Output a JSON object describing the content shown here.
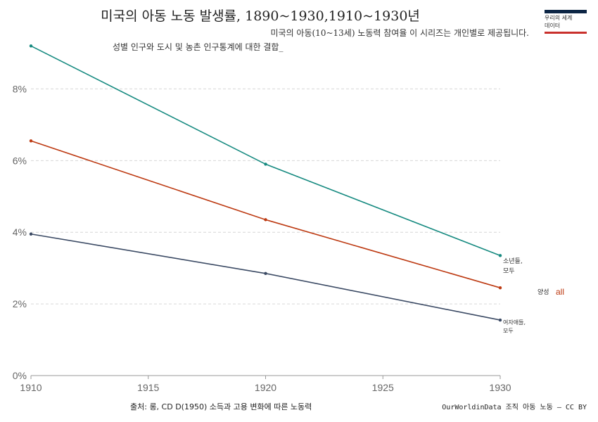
{
  "header": {
    "title": "미국의 아동 노동 발생률, 1890~1930,1910~1930년",
    "subtitle_line1": "미국의 아동(10~13세) 노동력 참여율 이 시리즈는 개인별로 제공됩니다.",
    "subtitle_line2": "성별 인구와 도시 및 농촌 인구통계에 대한 결합_"
  },
  "logo": {
    "line1": "우리의 세계",
    "line2": "데이터"
  },
  "footer": {
    "source": "출처: 롱, CD D(1950) 소득과 고용 변화에 따른 노동력",
    "credit": "OurWorldinData 조직 아동 노동 – CC BY"
  },
  "chart_data": {
    "type": "line",
    "x": [
      1910,
      1920,
      1930
    ],
    "xlim": [
      1910,
      1930
    ],
    "xticks": [
      "1910",
      "1915",
      "1920",
      "1925",
      "1930"
    ],
    "ylim": [
      0,
      9.5
    ],
    "yticks": [
      "0%",
      "2%",
      "4%",
      "6%",
      "8%"
    ],
    "grid": "horizontal dashed",
    "series": [
      {
        "name": "소년들, 모두",
        "values": [
          9.2,
          5.9,
          3.35
        ],
        "color": "#168a80"
      },
      {
        "name": "양성 all",
        "values": [
          6.55,
          4.35,
          2.45
        ],
        "color": "#bd3a12"
      },
      {
        "name": "여자애들, 모두",
        "values": [
          3.95,
          2.85,
          1.55
        ],
        "color": "#3b4a64"
      }
    ],
    "labels": {
      "boys_1": "소년들,",
      "boys_2": "모두",
      "both_1": "양성",
      "both_2": "all",
      "girls_1": "여자애들,",
      "girls_2": "모두"
    }
  }
}
